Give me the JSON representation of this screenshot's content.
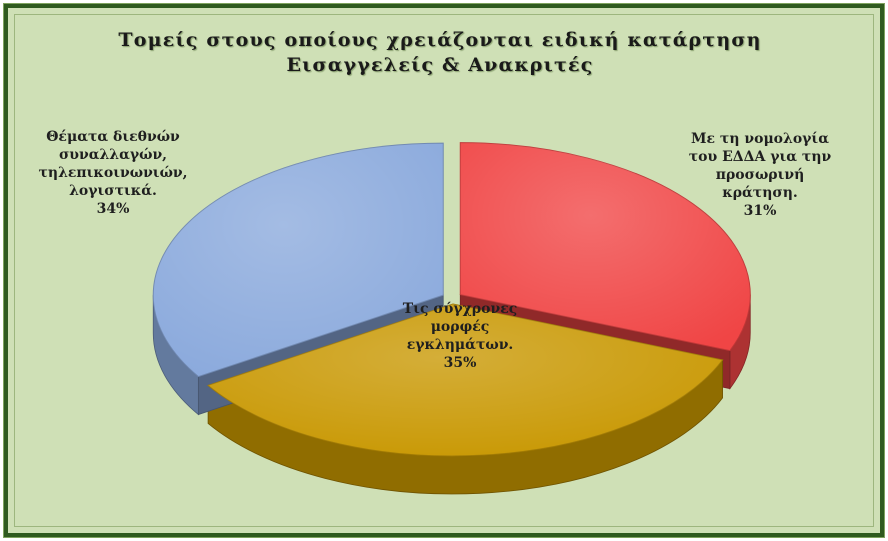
{
  "chart_data": {
    "type": "pie",
    "title_lines": [
      "Τομείς στους οποίους χρειάζονται ειδική κατάρτηση",
      "Εισαγγελείς & Ανακριτές"
    ],
    "slices": [
      {
        "label_lines": [
          "Με τη νομολογία",
          "του ΕΔΔΑ για την",
          "προσωρινή",
          "κράτηση."
        ],
        "percent_label": "31%",
        "value": 31,
        "color": "#f04545"
      },
      {
        "label_lines": [
          "Τις σύγχρονες",
          "μορφές",
          "εγκλημάτων."
        ],
        "percent_label": "35%",
        "value": 35,
        "color": "#c89700"
      },
      {
        "label_lines": [
          "Θέματα διεθνών",
          "συναλλαγών,",
          "τηλεπικοινωνιών,",
          "λογιστικά."
        ],
        "percent_label": "34%",
        "value": 34,
        "color": "#8aa9dc"
      }
    ],
    "legend": "none",
    "style": "3d-exploded"
  }
}
